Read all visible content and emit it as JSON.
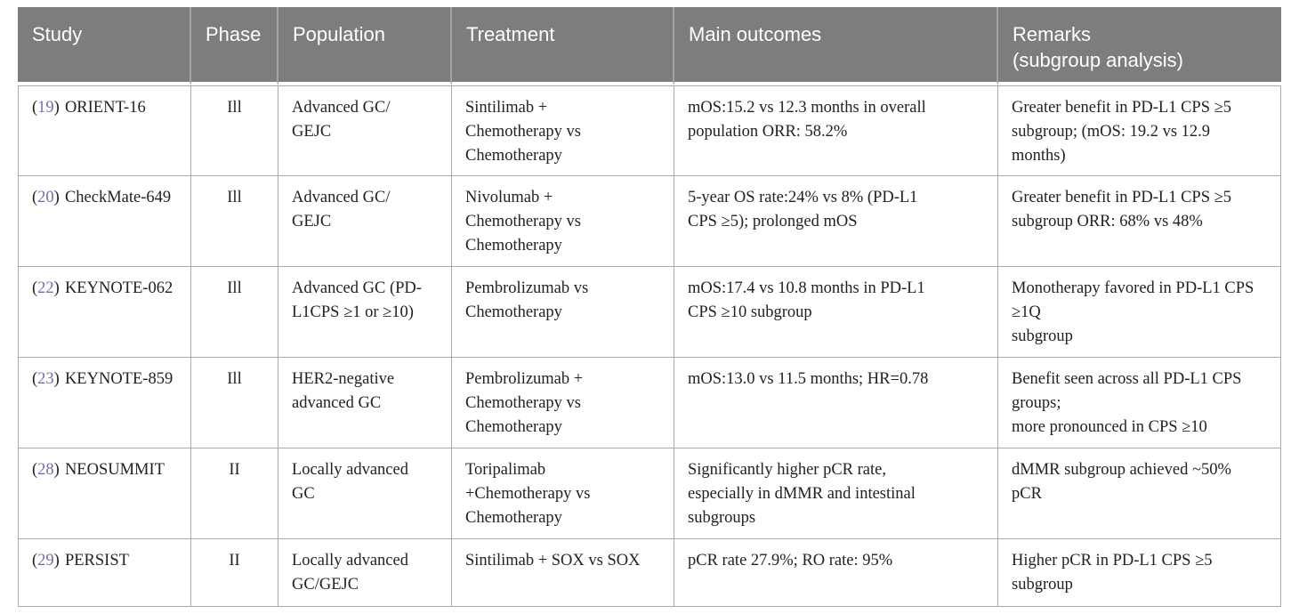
{
  "colors": {
    "header_bg": "#7d7d7d",
    "header_text": "#ffffff",
    "body_text": "#222222",
    "grid_line": "#aaaaaa",
    "citation_link": "#6f6fb0"
  },
  "symbols": {
    "paren_open": "(",
    "paren_close": ")"
  },
  "table": {
    "headers": {
      "study": "Study",
      "phase": "Phase",
      "population": "Population",
      "treatment": "Treatment",
      "outcomes": "Main outcomes",
      "remarks": "Remarks\n(subgroup analysis)"
    },
    "rows": [
      {
        "ref": "19",
        "study": "ORIENT-16",
        "phase": "Ill",
        "population": "Advanced GC/\nGEJC",
        "treatment": "Sintilimab +\nChemotherapy vs\nChemotherapy",
        "outcomes": "mOS:15.2 vs 12.3 months in overall\npopulation ORR: 58.2%",
        "remarks": "Greater benefit in PD-L1 CPS ≥5\nsubgroup; (mOS: 19.2 vs 12.9\nmonths)"
      },
      {
        "ref": "20",
        "study": "CheckMate-649",
        "phase": "Ill",
        "population": "Advanced GC/\nGEJC",
        "treatment": "Nivolumab +\nChemotherapy vs\nChemotherapy",
        "outcomes": "5-year OS rate:24% vs 8% (PD-L1\nCPS ≥5); prolonged mOS",
        "remarks": "Greater benefit in PD-L1 CPS ≥5\nsubgroup ORR: 68% vs 48%"
      },
      {
        "ref": "22",
        "study": "KEYNOTE-062",
        "phase": "Ill",
        "population": "Advanced GC (PD-\nL1CPS ≥1 or ≥10)",
        "treatment": "Pembrolizumab vs\nChemotherapy",
        "outcomes": "mOS:17.4 vs 10.8 months in PD-L1\nCPS ≥10 subgroup",
        "remarks": "Monotherapy favored in PD-L1 CPS\n≥1Q\nsubgroup"
      },
      {
        "ref": "23",
        "study": "KEYNOTE-859",
        "phase": "Ill",
        "population": "HER2-negative\nadvanced GC",
        "treatment": "Pembrolizumab +\nChemotherapy vs\nChemotherapy",
        "outcomes": "mOS:13.0 vs 11.5 months; HR=0.78",
        "remarks": "Benefit seen across all PD-L1 CPS\ngroups;\nmore pronounced in CPS ≥10"
      },
      {
        "ref": "28",
        "study": "NEOSUMMIT",
        "phase": "II",
        "population": "Locally advanced\nGC",
        "treatment": "Toripalimab\n+Chemotherapy vs\nChemotherapy",
        "outcomes": "Significantly higher pCR rate,\nespecially in dMMR and intestinal\nsubgroups",
        "remarks": "dMMR subgroup achieved ~50%\npCR"
      },
      {
        "ref": "29",
        "study": "PERSIST",
        "phase": "II",
        "population": "Locally advanced\nGC/GEJC",
        "treatment": "Sintilimab + SOX vs SOX",
        "outcomes": "pCR rate 27.9%; RO rate: 95%",
        "remarks": "Higher pCR in PD-L1 CPS ≥5\nsubgroup"
      }
    ]
  }
}
